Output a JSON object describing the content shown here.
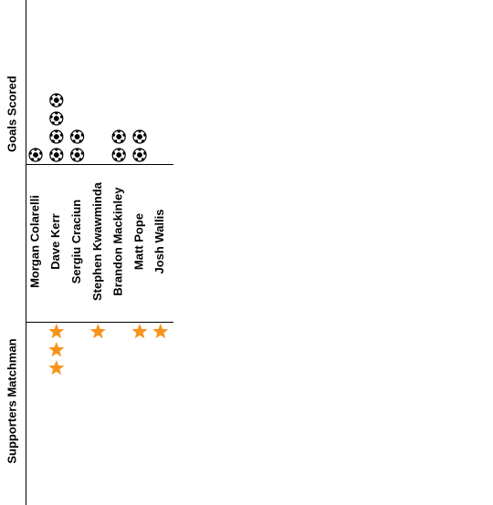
{
  "chart_data": {
    "type": "pictograph",
    "categories": [
      "Morgan Colarelli",
      "Dave Kerr",
      "Sergiu Craciun",
      "Stephen Kwawminda",
      "Brandon Mackinley",
      "Matt Pope",
      "Josh Wallis"
    ],
    "series": [
      {
        "name": "Goals Scored",
        "icon": "ball",
        "color": "#000000",
        "values": [
          1,
          4,
          2,
          0,
          2,
          2,
          0
        ]
      },
      {
        "name": "Supporters Matchman",
        "icon": "star",
        "color": "#f7941d",
        "values": [
          0,
          3,
          0,
          1,
          0,
          1,
          1
        ]
      }
    ]
  }
}
